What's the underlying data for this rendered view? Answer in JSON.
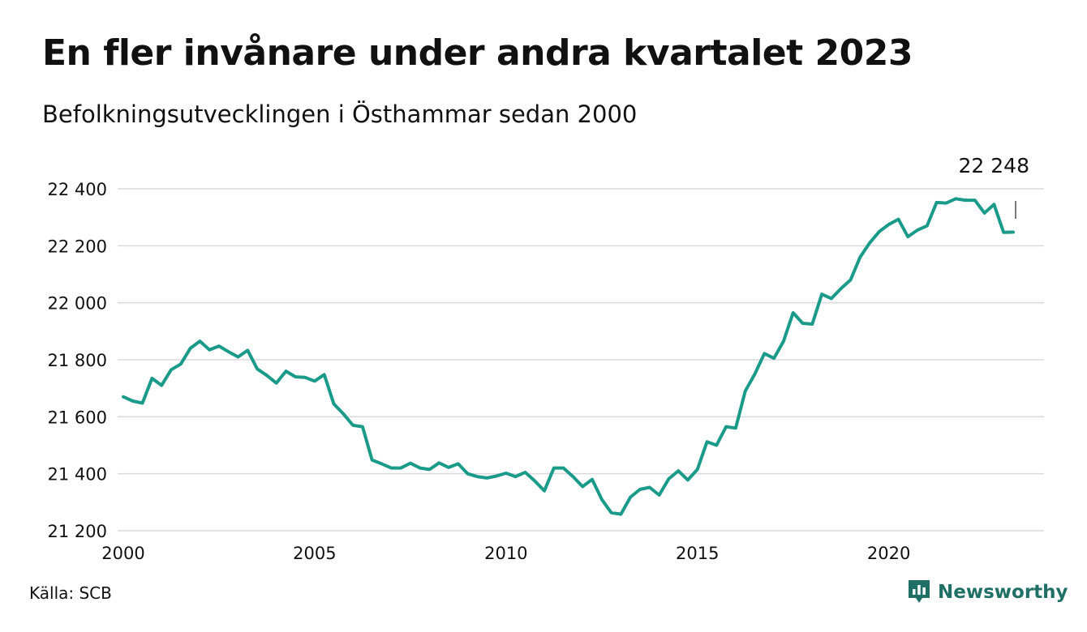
{
  "header": {
    "title": "En fler invånare under andra kvartalet 2023",
    "subtitle": "Befolkningsutvecklingen i Östhammar sedan 2000"
  },
  "footer": {
    "source": "Källa: SCB",
    "brand": "Newsworthy",
    "brand_icon": "newsworthy-logo-icon"
  },
  "colors": {
    "line": "#1a9a89",
    "grid": "#d9d9df",
    "brand": "#1f6f66"
  },
  "chart_data": {
    "type": "line",
    "title": "En fler invånare under andra kvartalet 2023",
    "subtitle": "Befolkningsutvecklingen i Östhammar sedan 2000",
    "x_start": 2000.0,
    "x_step_years": 0.25,
    "xlim": [
      2000,
      2024.2
    ],
    "ylim": [
      21200,
      22420
    ],
    "y_ticks": [
      21200,
      21400,
      21600,
      21800,
      22000,
      22200,
      22400
    ],
    "y_tick_labels": [
      "21 200",
      "21 400",
      "21 600",
      "21 800",
      "22 000",
      "22 200",
      "22 400"
    ],
    "x_ticks": [
      2000,
      2005,
      2010,
      2015,
      2020
    ],
    "x_tick_labels": [
      "2000",
      "2005",
      "2010",
      "2015",
      "2020"
    ],
    "grid": true,
    "end_label": "22 248",
    "series": [
      {
        "values": [
          21670,
          21655,
          21648,
          21735,
          21710,
          21765,
          21785,
          21840,
          21865,
          21835,
          21848,
          21828,
          21810,
          21833,
          21768,
          21745,
          21718,
          21760,
          21740,
          21738,
          21725,
          21748,
          21645,
          21610,
          21570,
          21565,
          21448,
          21435,
          21420,
          21420,
          21437,
          21420,
          21415,
          21438,
          21422,
          21435,
          21400,
          21390,
          21385,
          21392,
          21402,
          21390,
          21405,
          21375,
          21340,
          21420,
          21420,
          21390,
          21355,
          21380,
          21310,
          21263,
          21258,
          21318,
          21345,
          21352,
          21325,
          21382,
          21410,
          21378,
          21415,
          21512,
          21500,
          21565,
          21560,
          21690,
          21750,
          21822,
          21805,
          21865,
          21965,
          21928,
          21925,
          22030,
          22015,
          22050,
          22080,
          22160,
          22210,
          22250,
          22275,
          22293,
          22232,
          22255,
          22270,
          22352,
          22350,
          22365,
          22360,
          22360,
          22315,
          22345,
          22247,
          22248
        ]
      }
    ]
  }
}
